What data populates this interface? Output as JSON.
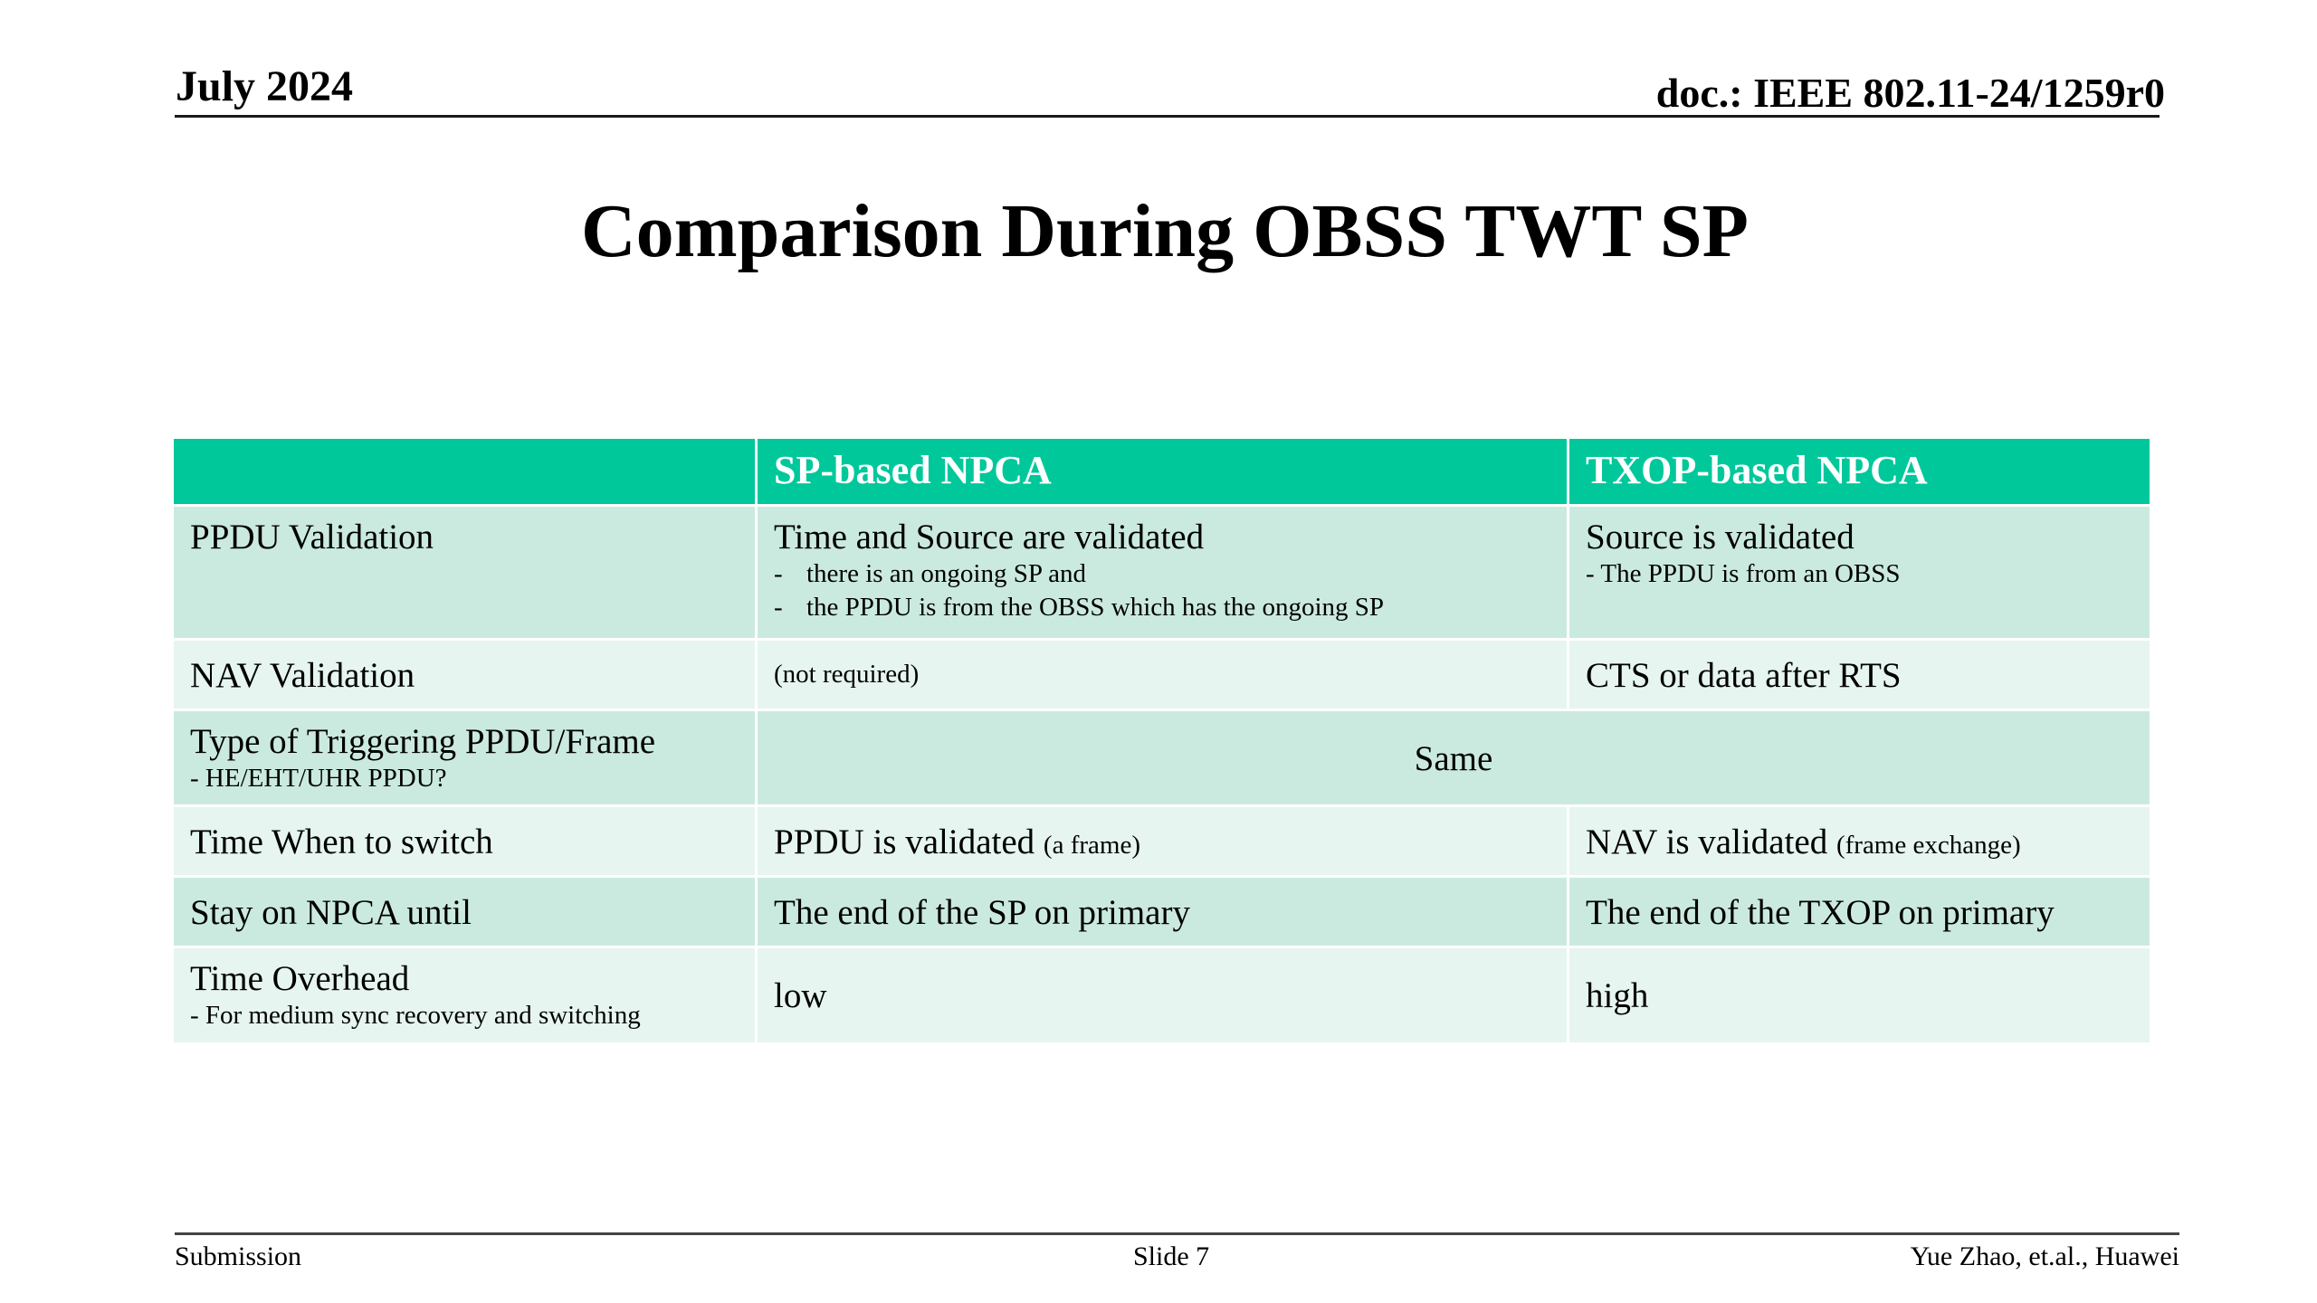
{
  "header": {
    "date": "July 2024",
    "doc": "doc.: IEEE 802.11-24/1259r0"
  },
  "title": "Comparison During OBSS TWT SP",
  "table": {
    "columns": [
      "",
      "SP-based NPCA",
      "TXOP-based NPCA"
    ],
    "rows": {
      "ppdu": {
        "label": "PPDU Validation",
        "sp_main": "Time and Source are validated",
        "sp_bullet1": "there is an ongoing SP and",
        "sp_bullet2": "the PPDU is from the OBSS which has the ongoing SP",
        "dash": "-",
        "txop_main": "Source is validated",
        "txop_sub": "- The PPDU is from an OBSS"
      },
      "nav": {
        "label": "NAV Validation",
        "sp": "(not required)",
        "txop": "CTS or data after RTS"
      },
      "type": {
        "label": "Type of Triggering PPDU/Frame",
        "label_sub": "- HE/EHT/UHR PPDU?",
        "merged": "Same"
      },
      "when": {
        "label": "Time When to switch",
        "sp_main": "PPDU is validated",
        "sp_small": "(a frame)",
        "txop_main": "NAV is validated",
        "txop_small": "(frame exchange)"
      },
      "stay": {
        "label": "Stay on NPCA until",
        "sp": "The end of the SP on primary",
        "txop": "The end of the TXOP on primary"
      },
      "overhead": {
        "label": "Time Overhead",
        "label_sub": "- For medium sync recovery and switching",
        "sp": "low",
        "txop": "high"
      }
    }
  },
  "footer": {
    "left": "Submission",
    "center": "Slide 7",
    "right": "Yue Zhao, et.al., Huawei"
  },
  "colors": {
    "header_fill": "#00c89b",
    "row_dark": "#cbeadf",
    "row_light": "#e6f5ef"
  }
}
